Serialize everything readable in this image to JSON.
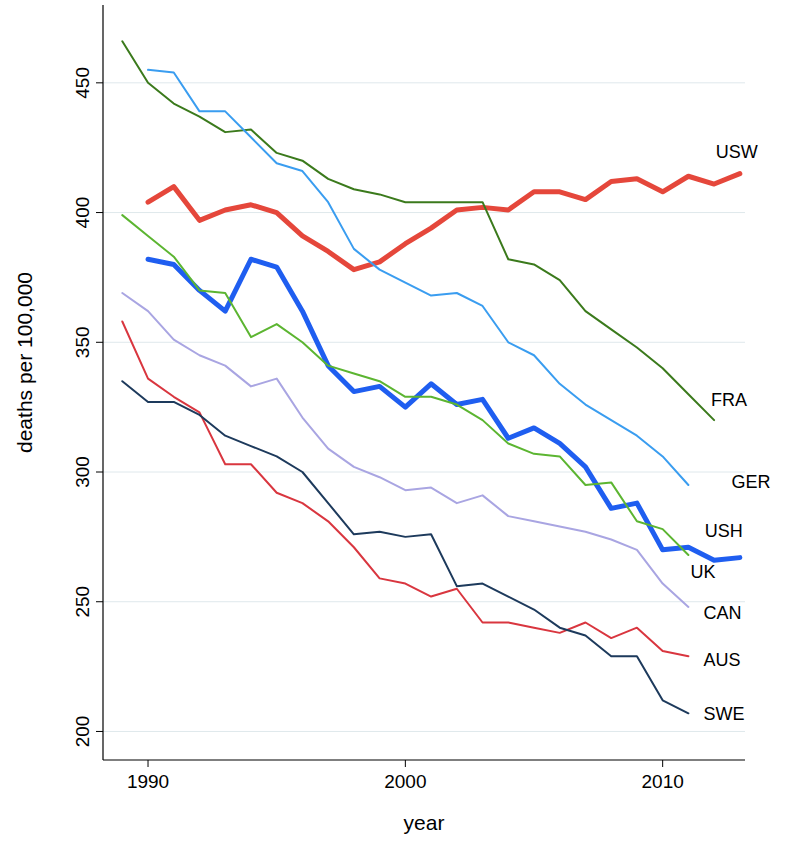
{
  "chart_data": {
    "type": "line",
    "x_label": "year",
    "y_label": "deaths per 100,000",
    "x": [
      1989,
      1990,
      1991,
      1992,
      1993,
      1994,
      1995,
      1996,
      1997,
      1998,
      1999,
      2000,
      2001,
      2002,
      2003,
      2004,
      2005,
      2006,
      2007,
      2008,
      2009,
      2010,
      2011,
      2012,
      2013
    ],
    "xlim": [
      1988.25,
      2013.2
    ],
    "xticks": [
      1990,
      2000,
      2010
    ],
    "ylim": [
      189,
      480
    ],
    "yticks": [
      200,
      250,
      300,
      350,
      400,
      450
    ],
    "grid": true,
    "series": [
      {
        "name": "USW",
        "color": "#e5473b",
        "line_style": "bold",
        "values": [
          null,
          404,
          410,
          397,
          401,
          403,
          400,
          391,
          385,
          378,
          381,
          388,
          394,
          401,
          402,
          401,
          408,
          408,
          405,
          412,
          413,
          408,
          414,
          411,
          415
        ]
      },
      {
        "name": "FRA",
        "color": "#3b7a1c",
        "line_style": "solid",
        "values": [
          466,
          450,
          442,
          437,
          431,
          432,
          423,
          420,
          413,
          409,
          407,
          404,
          404,
          404,
          404,
          382,
          380,
          374,
          362,
          355,
          348,
          340,
          330,
          320,
          null
        ]
      },
      {
        "name": "GER",
        "color": "#3a9df0",
        "line_style": "solid",
        "values": [
          null,
          455,
          454,
          439,
          439,
          429,
          419,
          416,
          404,
          386,
          378,
          373,
          368,
          369,
          364,
          350,
          345,
          334,
          326,
          320,
          314,
          306,
          295,
          null,
          null
        ]
      },
      {
        "name": "USH",
        "color": "#1f5ef0",
        "line_style": "bold",
        "values": [
          null,
          382,
          380,
          370,
          362,
          382,
          379,
          362,
          341,
          331,
          333,
          325,
          334,
          326,
          328,
          313,
          317,
          311,
          302,
          286,
          288,
          270,
          271,
          266,
          267
        ]
      },
      {
        "name": "UK",
        "color": "#5cb531",
        "line_style": "solid",
        "values": [
          399,
          391,
          383,
          370,
          369,
          352,
          357,
          350,
          341,
          338,
          335,
          329,
          329,
          326,
          320,
          311,
          307,
          306,
          295,
          296,
          281,
          278,
          268,
          null,
          null
        ]
      },
      {
        "name": "CAN",
        "color": "#a9a5e2",
        "line_style": "solid",
        "values": [
          369,
          362,
          351,
          345,
          341,
          333,
          336,
          321,
          309,
          302,
          298,
          293,
          294,
          288,
          291,
          283,
          281,
          279,
          277,
          274,
          270,
          257,
          248,
          null,
          null
        ]
      },
      {
        "name": "AUS",
        "color": "#d9363f",
        "line_style": "solid",
        "values": [
          358,
          336,
          329,
          323,
          303,
          303,
          292,
          288,
          281,
          271,
          259,
          257,
          252,
          255,
          242,
          242,
          240,
          238,
          242,
          236,
          240,
          231,
          229,
          null,
          null
        ]
      },
      {
        "name": "SWE",
        "color": "#1d3a5c",
        "line_style": "solid",
        "values": [
          335,
          327,
          327,
          322,
          314,
          310,
          306,
          300,
          288,
          276,
          277,
          275,
          276,
          256,
          257,
          252,
          247,
          240,
          237,
          229,
          229,
          212,
          207,
          null,
          null
        ]
      }
    ]
  }
}
